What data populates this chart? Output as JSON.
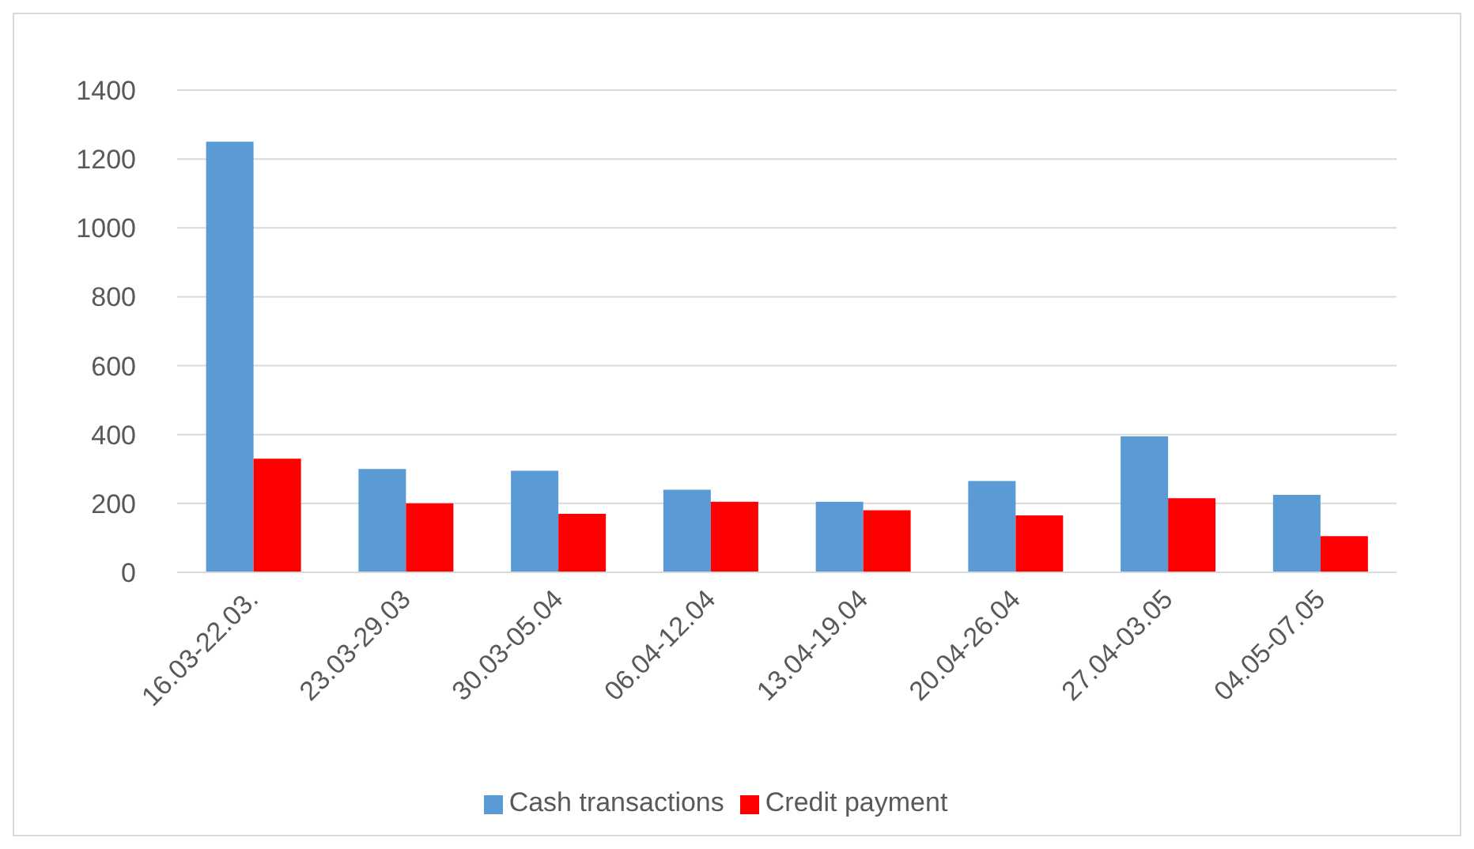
{
  "chart_data": {
    "type": "bar",
    "categories": [
      "16.03-22.03.",
      "23.03-29.03",
      "30.03-05.04",
      "06.04-12.04",
      "13.04-19.04",
      "20.04-26.04",
      "27.04-03.05",
      "04.05-07.05"
    ],
    "series": [
      {
        "name": "Cash transactions",
        "color": "#5b9bd5",
        "values": [
          1250,
          300,
          295,
          240,
          205,
          265,
          395,
          225
        ]
      },
      {
        "name": "Credit payment",
        "color": "#ff0000",
        "values": [
          330,
          200,
          170,
          205,
          180,
          165,
          215,
          105
        ]
      }
    ],
    "ylim": [
      0,
      1400
    ],
    "yticks": [
      0,
      200,
      400,
      600,
      800,
      1000,
      1200,
      1400
    ],
    "grid": "y",
    "legend": "bottom"
  }
}
